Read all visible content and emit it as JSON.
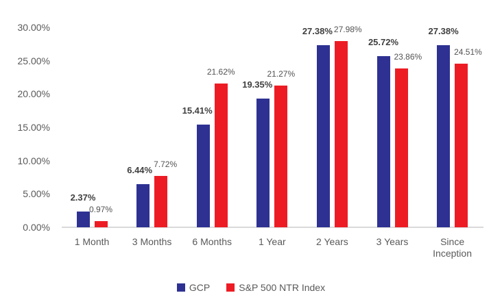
{
  "chart_data": {
    "type": "bar",
    "categories": [
      "1 Month",
      "3 Months",
      "6 Months",
      "1 Year",
      "2 Years",
      "3 Years",
      "Since Inception"
    ],
    "series": [
      {
        "name": "GCP",
        "color": "#2E3192",
        "values": [
          2.37,
          6.44,
          15.41,
          19.35,
          27.38,
          25.72,
          27.38
        ],
        "labels": [
          "2.37%",
          "6.44%",
          "15.41%",
          "19.35%",
          "27.38%",
          "25.72%",
          "27.38%"
        ]
      },
      {
        "name": "S&P 500 NTR Index",
        "color": "#ED1C24",
        "values": [
          0.97,
          7.72,
          21.62,
          21.27,
          27.98,
          23.86,
          24.51
        ],
        "labels": [
          "0.97%",
          "7.72%",
          "21.62%",
          "21.27%",
          "27.98%",
          "23.86%",
          "24.51%"
        ]
      }
    ],
    "y_axis": {
      "min": 0,
      "max": 30,
      "step": 5,
      "tick_labels": [
        "0.00%",
        "5.00%",
        "10.00%",
        "15.00%",
        "20.00%",
        "25.00%",
        "30.00%"
      ]
    },
    "legend": [
      "GCP",
      "S&P 500 NTR Index"
    ],
    "legend_position": "bottom",
    "grid": false,
    "title": "",
    "xlabel": "",
    "ylabel": "",
    "value_format": "percent"
  },
  "colors": {
    "gcp_bar": "#2E3192",
    "sp500_bar": "#ED1C24",
    "axis_text": "#595959",
    "gcp_label_text": "#3f3f3f",
    "sp500_label_text": "#525252",
    "axis_line": "#d9d9d9",
    "background": "#ffffff"
  }
}
